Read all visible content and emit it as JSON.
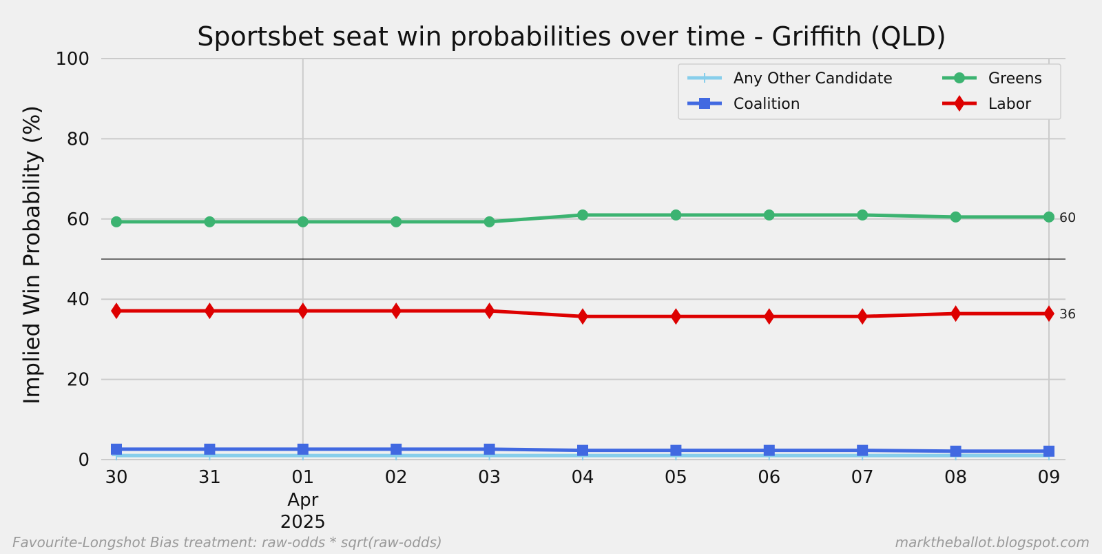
{
  "chart_data": {
    "type": "line",
    "title": "Sportsbet seat win probabilities over time - Griffith (QLD)",
    "xlabel": "",
    "ylabel": "Implied Win Probability (%)",
    "ylim": [
      0,
      100
    ],
    "yticks": [
      0,
      20,
      40,
      60,
      80,
      100
    ],
    "x": [
      "30",
      "31",
      "01",
      "02",
      "03",
      "04",
      "05",
      "06",
      "07",
      "08",
      "09"
    ],
    "x_sublabels": {
      "01": [
        "Apr",
        "2025"
      ]
    },
    "reference_line": 50,
    "grid": true,
    "legend_position": "top-right",
    "series": [
      {
        "name": "Any Other Candidate",
        "color": "#87ceeb",
        "marker": "plus",
        "values": [
          1,
          1,
          1,
          1,
          1,
          1,
          1,
          1,
          1,
          1,
          1
        ]
      },
      {
        "name": "Coalition",
        "color": "#4169e1",
        "marker": "square",
        "values": [
          2.6,
          2.6,
          2.6,
          2.6,
          2.6,
          2.3,
          2.3,
          2.3,
          2.3,
          2.1,
          2.1
        ]
      },
      {
        "name": "Greens",
        "color": "#3cb371",
        "marker": "circle",
        "values": [
          59.3,
          59.3,
          59.3,
          59.3,
          59.3,
          61,
          61,
          61,
          61,
          60.5,
          60.5
        ],
        "end_label": "60"
      },
      {
        "name": "Labor",
        "color": "#dd0000",
        "marker": "diamond",
        "values": [
          37.1,
          37.1,
          37.1,
          37.1,
          37.1,
          35.7,
          35.7,
          35.7,
          35.7,
          36.4,
          36.4
        ],
        "end_label": "36"
      }
    ]
  },
  "footer": {
    "left": "Favourite-Longshot Bias treatment: raw-odds * sqrt(raw-odds)",
    "right": "marktheballot.blogspot.com"
  }
}
